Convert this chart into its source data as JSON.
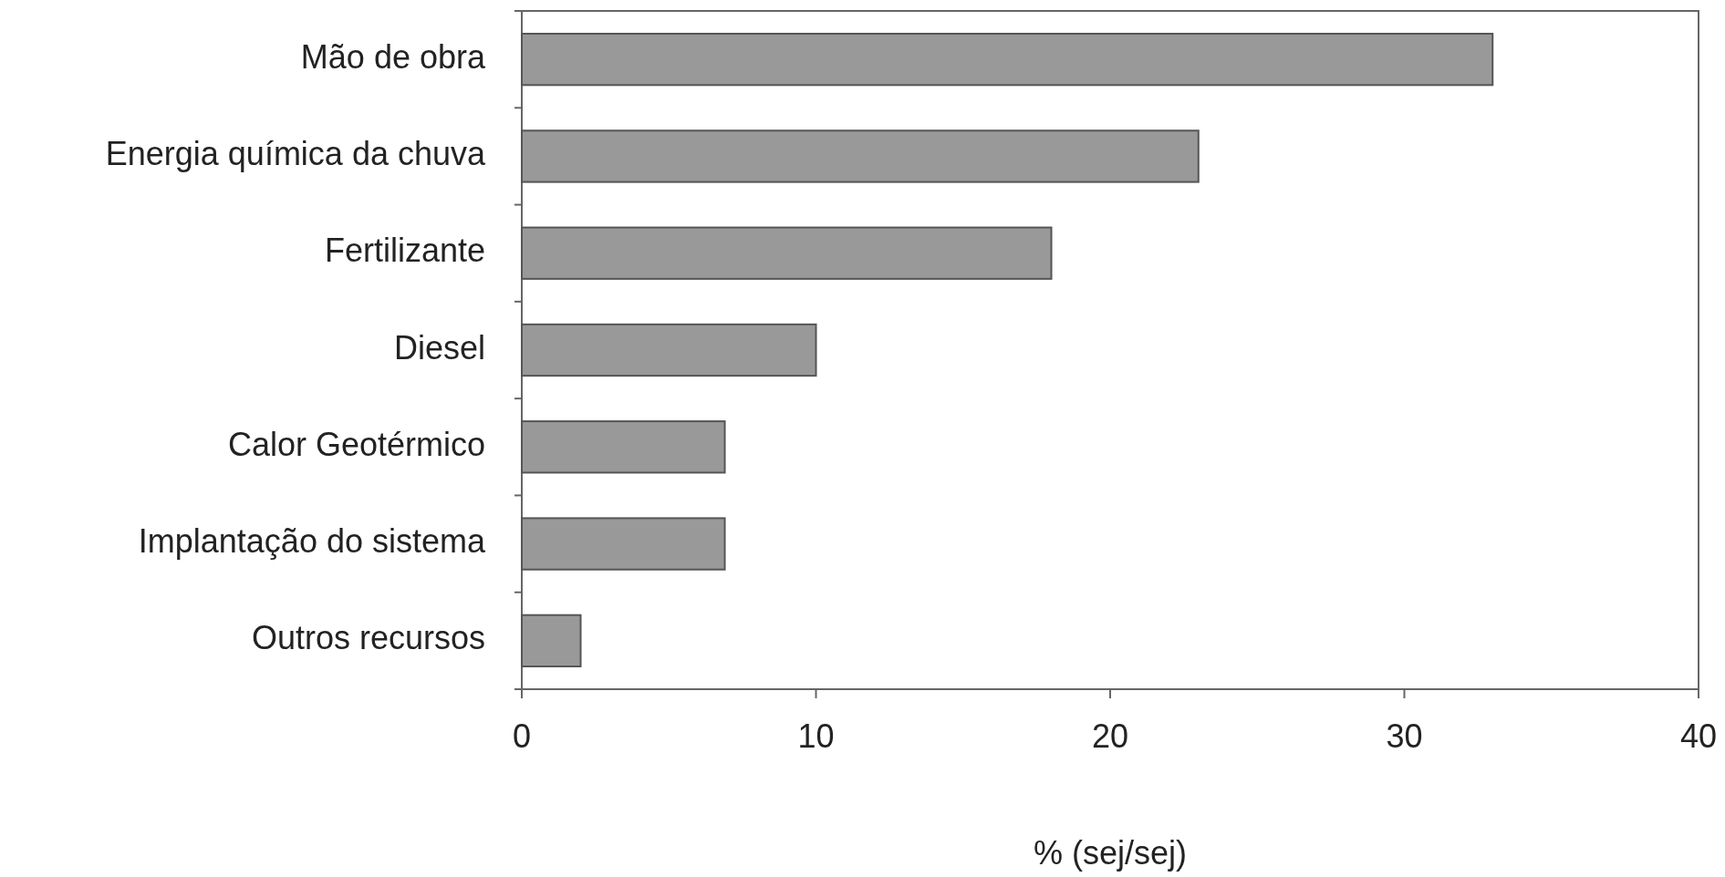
{
  "chart_data": {
    "type": "bar",
    "orientation": "horizontal",
    "xlabel": "% (sej/sej)",
    "categories": [
      "Mão de obra",
      "Energia química da chuva",
      "Fertilizante",
      "Diesel",
      "Calor Geotérmico",
      "Implantação do sistema",
      "Outros recursos"
    ],
    "values": [
      33,
      23,
      18,
      10,
      6.9,
      6.9,
      2
    ],
    "color": "#999999",
    "xlim": [
      0,
      40
    ],
    "xticks": [
      0,
      10,
      20,
      30,
      40
    ]
  }
}
